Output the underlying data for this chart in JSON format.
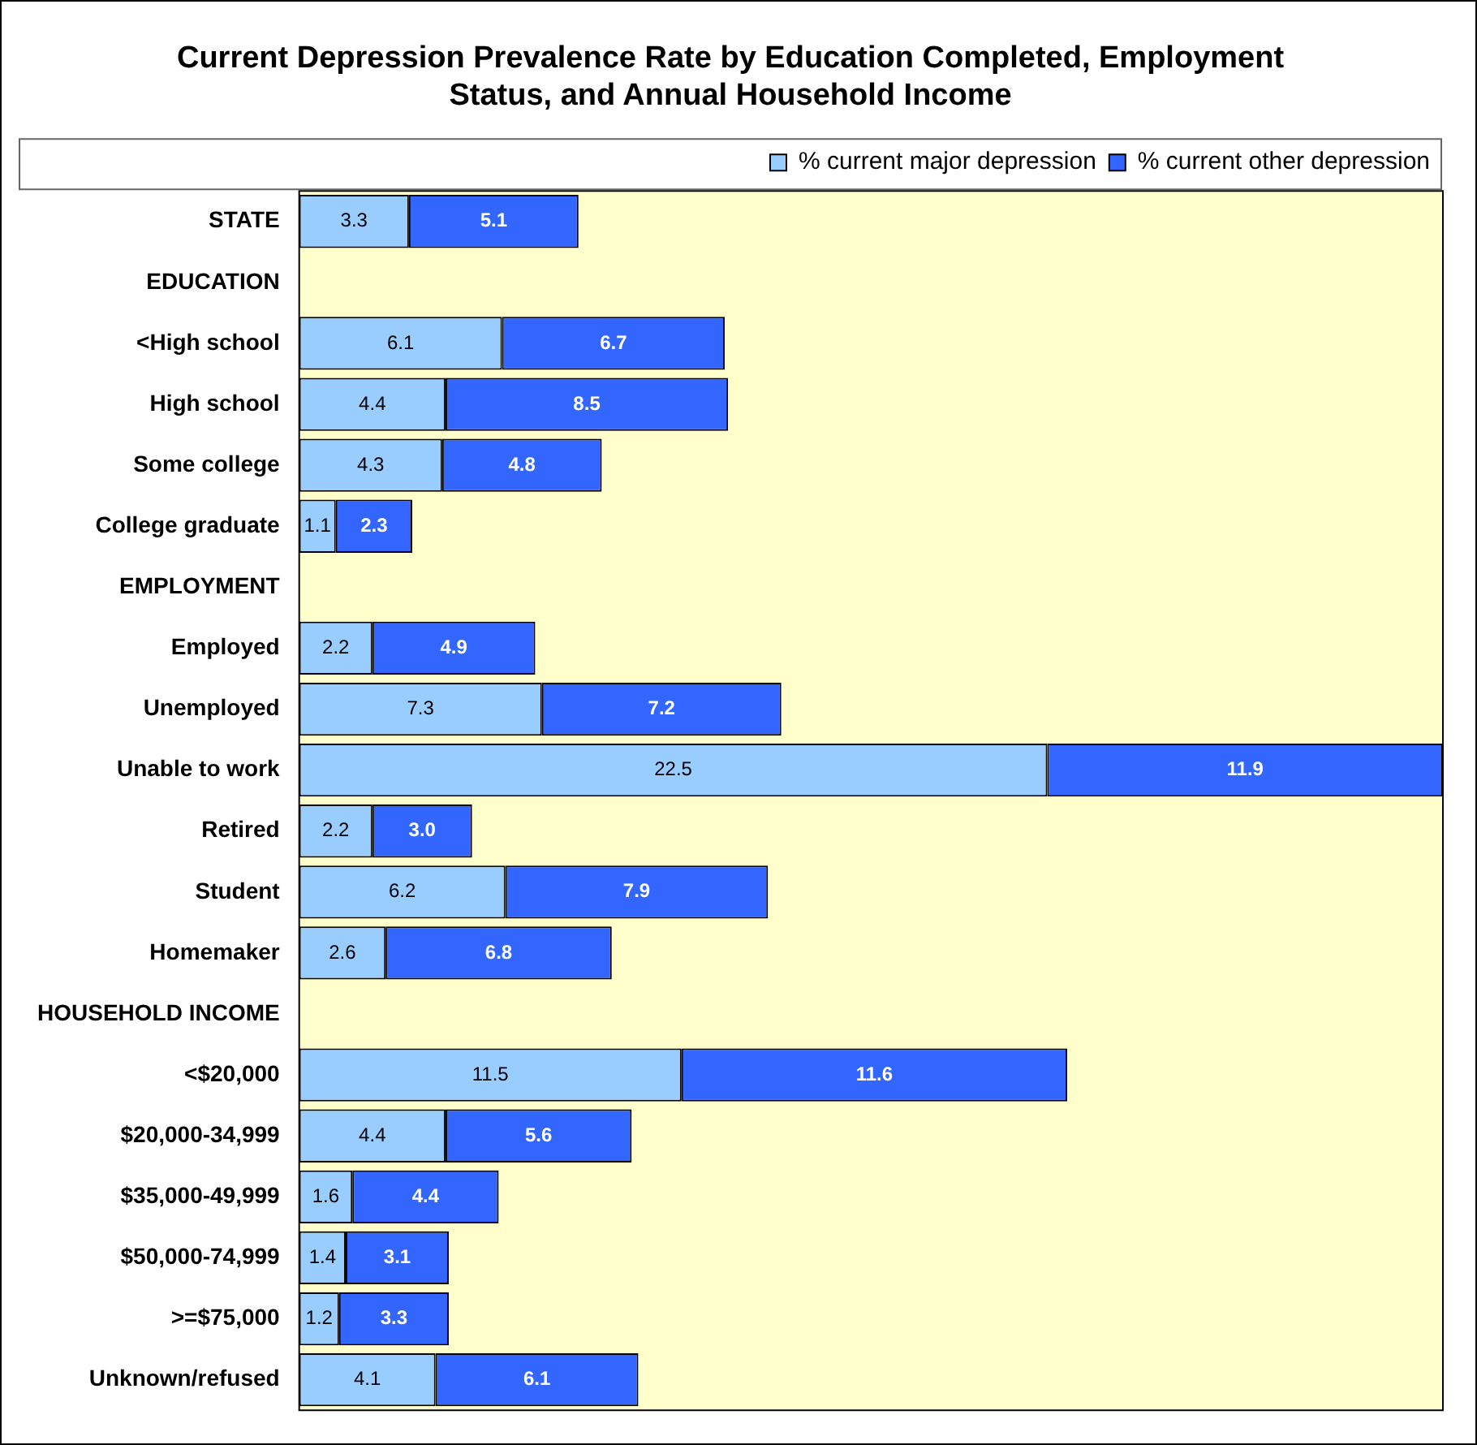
{
  "chart_data": {
    "type": "bar",
    "orientation": "horizontal",
    "stacked": true,
    "title": "Current Depression Prevalence Rate by Education Completed, Employment Status, and Annual Household Income",
    "categories": [
      "STATE",
      "EDUCATION",
      "<High school",
      "High school",
      "Some college",
      "College graduate",
      "EMPLOYMENT",
      "Employed",
      "Unemployed",
      "Unable to work",
      "Retired",
      "Student",
      "Homemaker",
      "HOUSEHOLD INCOME",
      "<$20,000",
      "$20,000-34,999",
      "$35,000-49,999",
      "$50,000-74,999",
      ">=$75,000",
      "Unknown/refused"
    ],
    "series": [
      {
        "name": "% current major depression",
        "color": "#99ccff",
        "values": [
          3.3,
          null,
          6.1,
          4.4,
          4.3,
          1.1,
          null,
          2.2,
          7.3,
          22.5,
          2.2,
          6.2,
          2.6,
          null,
          11.5,
          4.4,
          1.6,
          1.4,
          1.2,
          4.1
        ],
        "value_labels": [
          "3.3",
          null,
          "6.1",
          "4.4",
          "4.3",
          "1.1",
          null,
          "2.2",
          "7.3",
          "22.5",
          "2.2",
          "6.2",
          "2.6",
          null,
          "11.5",
          "4.4",
          "1.6",
          "1.4",
          "1.2",
          "4.1"
        ]
      },
      {
        "name": "% current other depression",
        "color": "#3366ff",
        "values": [
          5.1,
          null,
          6.7,
          8.5,
          4.8,
          2.3,
          null,
          4.9,
          7.2,
          11.9,
          3.0,
          7.9,
          6.8,
          null,
          11.6,
          5.6,
          4.4,
          3.1,
          3.3,
          6.1
        ],
        "value_labels": [
          "5.1",
          null,
          "6.7",
          "8.5",
          "4.8",
          "2.3",
          null,
          "4.9",
          "7.2",
          "11.9",
          "3.0",
          "7.9",
          "6.8",
          null,
          "11.6",
          "5.6",
          "4.4",
          "3.1",
          "3.3",
          "6.1"
        ]
      }
    ],
    "xlim": [
      0,
      34.4
    ],
    "tick_labels": "y",
    "grid": false,
    "legend": "top"
  }
}
